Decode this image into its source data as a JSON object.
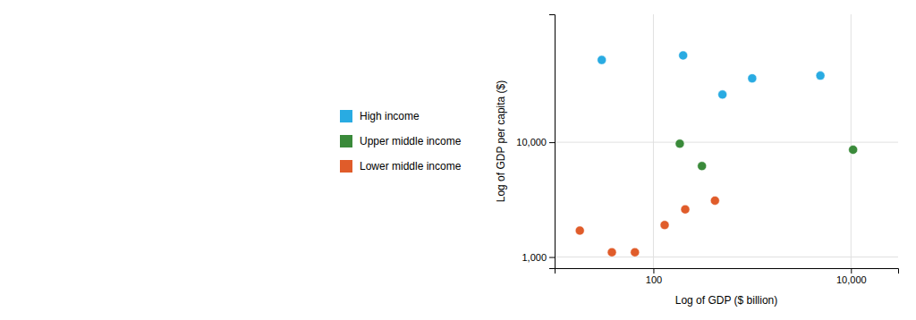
{
  "chart_data": {
    "type": "scatter",
    "xlabel": "Log of GDP ($ billion)",
    "ylabel": "Log of GDP per capita ($)",
    "log": true,
    "grid": true,
    "legend": "left",
    "xlim": [
      10,
      30000
    ],
    "ylim": [
      800,
      130000
    ],
    "xticks": [
      100,
      {
        "value": 10000,
        "label": "10,000"
      }
    ],
    "yticks": [
      {
        "value": 1000,
        "label": "1,000"
      },
      {
        "value": 10000,
        "label": "10,000"
      }
    ],
    "series": [
      {
        "name": "High income",
        "color": "#29ABE2",
        "x": [
          30,
          200,
          500,
          1000,
          4900
        ],
        "values": [
          52000,
          57000,
          26000,
          36000,
          38000
        ]
      },
      {
        "name": "Upper middle income",
        "color": "#3A8A3A",
        "x": [
          185,
          310,
          10500
        ],
        "values": [
          9700,
          6200,
          8600
        ]
      },
      {
        "name": "Lower middle income",
        "color": "#E05C2A",
        "x": [
          18,
          38,
          65,
          130,
          210,
          420
        ],
        "values": [
          1700,
          1100,
          1100,
          1900,
          2600,
          3100
        ]
      }
    ]
  }
}
